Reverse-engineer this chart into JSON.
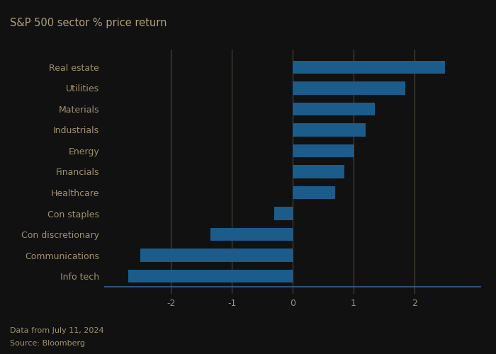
{
  "title": "S&P 500 sector % price return",
  "categories": [
    "Real estate",
    "Utilities",
    "Materials",
    "Industrials",
    "Energy",
    "Financials",
    "Healthcare",
    "Con staples",
    "Con discretionary",
    "Communications",
    "Info tech"
  ],
  "values": [
    2.5,
    1.85,
    1.35,
    1.2,
    1.0,
    0.85,
    0.7,
    -0.3,
    -1.35,
    -2.5,
    -2.7
  ],
  "bar_color": "#1b5c8b",
  "background_color": "#111111",
  "plot_bg_color": "#111111",
  "text_color": "#a09070",
  "title_color": "#b0a080",
  "grid_color": "#5a5040",
  "axis_line_color": "#3a6090",
  "xlim": [
    -3.1,
    3.1
  ],
  "xticks": [
    -2,
    -1,
    0,
    1,
    2
  ],
  "footnote_line1": "Data from July 11, 2024",
  "footnote_line2": "Source: Bloomberg",
  "bar_height": 0.62
}
